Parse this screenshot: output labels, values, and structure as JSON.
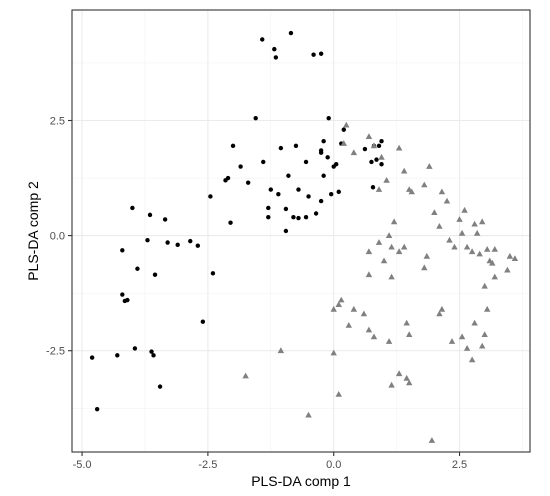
{
  "chart_data": {
    "type": "scatter",
    "title": "",
    "xlabel": "PLS-DA comp 1",
    "ylabel": "PLS-DA comp 2",
    "xlim": [
      -5.2,
      3.9
    ],
    "ylim": [
      -4.7,
      4.9
    ],
    "xticks": [
      -5.0,
      -2.5,
      0.0,
      2.5
    ],
    "xtick_labels": [
      "-5.0",
      "-2.5",
      "0.0",
      "2.5"
    ],
    "yticks": [
      -2.5,
      0.0,
      2.5
    ],
    "ytick_labels": [
      "-2.5",
      "0.0",
      "2.5"
    ],
    "grid": true,
    "legend": "none",
    "series": [
      {
        "marker": "circle",
        "color": "#000000",
        "points": [
          [
            -1.42,
            4.26
          ],
          [
            -1.18,
            4.05
          ],
          [
            -1.15,
            3.87
          ],
          [
            -0.85,
            4.4
          ],
          [
            -0.4,
            3.93
          ],
          [
            -0.25,
            3.95
          ],
          [
            -1.55,
            2.55
          ],
          [
            -2.0,
            1.95
          ],
          [
            -1.85,
            1.5
          ],
          [
            -1.4,
            1.6
          ],
          [
            -1.05,
            1.9
          ],
          [
            -0.9,
            1.3
          ],
          [
            -0.75,
            1.95
          ],
          [
            -0.55,
            1.6
          ],
          [
            -0.25,
            1.8
          ],
          [
            -0.1,
            2.55
          ],
          [
            -0.2,
            2.05
          ],
          [
            -0.12,
            1.7
          ],
          [
            0.2,
            2.3
          ],
          [
            0.15,
            2.0
          ],
          [
            -0.25,
            1.85
          ],
          [
            -0.2,
            1.3
          ],
          [
            0.0,
            1.5
          ],
          [
            -1.7,
            1.15
          ],
          [
            -1.25,
            1.0
          ],
          [
            -1.1,
            0.9
          ],
          [
            -0.7,
            1.0
          ],
          [
            -0.5,
            0.85
          ],
          [
            -0.25,
            0.75
          ],
          [
            0.1,
            0.95
          ],
          [
            -2.15,
            1.2
          ],
          [
            -2.1,
            1.25
          ],
          [
            -2.45,
            0.85
          ],
          [
            -2.05,
            0.28
          ],
          [
            -1.3,
            0.4
          ],
          [
            -1.3,
            0.6
          ],
          [
            -0.95,
            0.58
          ],
          [
            -0.8,
            0.4
          ],
          [
            -0.95,
            0.1
          ],
          [
            -0.55,
            0.4
          ],
          [
            -0.35,
            0.48
          ],
          [
            -0.7,
            0.38
          ],
          [
            -0.05,
            0.9
          ],
          [
            0.75,
            1.6
          ],
          [
            0.85,
            1.65
          ],
          [
            0.95,
            1.55
          ],
          [
            0.62,
            1.88
          ],
          [
            0.8,
            1.95
          ],
          [
            0.9,
            1.95
          ],
          [
            0.95,
            2.05
          ],
          [
            0.78,
            1.05
          ],
          [
            0.05,
            1.55
          ],
          [
            -4.0,
            0.6
          ],
          [
            -3.65,
            0.45
          ],
          [
            -3.35,
            0.35
          ],
          [
            -3.7,
            -0.1
          ],
          [
            -3.3,
            -0.15
          ],
          [
            -3.1,
            -0.2
          ],
          [
            -2.85,
            -0.12
          ],
          [
            -2.7,
            -0.22
          ],
          [
            -2.4,
            -0.82
          ],
          [
            -4.2,
            -0.32
          ],
          [
            -3.9,
            -0.72
          ],
          [
            -3.55,
            -0.85
          ],
          [
            -4.2,
            -1.28
          ],
          [
            -4.1,
            -1.4
          ],
          [
            -4.15,
            -1.42
          ],
          [
            -2.6,
            -1.87
          ],
          [
            -3.95,
            -2.45
          ],
          [
            -3.62,
            -2.52
          ],
          [
            -3.58,
            -2.6
          ],
          [
            -4.3,
            -2.6
          ],
          [
            -4.8,
            -2.65
          ],
          [
            -3.45,
            -3.28
          ],
          [
            -4.7,
            -3.77
          ]
        ]
      },
      {
        "marker": "triangle",
        "color": "#808080",
        "points": [
          [
            0.2,
            2.0
          ],
          [
            0.25,
            2.4
          ],
          [
            0.4,
            1.8
          ],
          [
            0.7,
            2.15
          ],
          [
            0.8,
            1.95
          ],
          [
            0.95,
            1.7
          ],
          [
            1.05,
            1.2
          ],
          [
            0.9,
            1.0
          ],
          [
            1.3,
            1.9
          ],
          [
            1.4,
            1.4
          ],
          [
            1.5,
            1.0
          ],
          [
            1.55,
            0.95
          ],
          [
            1.8,
            1.1
          ],
          [
            1.9,
            1.5
          ],
          [
            2.15,
            0.95
          ],
          [
            2.25,
            0.75
          ],
          [
            2.0,
            0.5
          ],
          [
            2.1,
            0.2
          ],
          [
            2.5,
            0.35
          ],
          [
            2.6,
            0.55
          ],
          [
            2.8,
            0.25
          ],
          [
            2.85,
            0.05
          ],
          [
            2.95,
            0.3
          ],
          [
            2.55,
            0.05
          ],
          [
            2.4,
            -0.25
          ],
          [
            2.3,
            -0.1
          ],
          [
            2.65,
            -0.25
          ],
          [
            2.75,
            -0.35
          ],
          [
            2.9,
            -0.4
          ],
          [
            3.05,
            -0.3
          ],
          [
            3.1,
            -0.55
          ],
          [
            3.15,
            -0.6
          ],
          [
            3.2,
            -0.9
          ],
          [
            3.0,
            -1.1
          ],
          [
            3.45,
            -0.75
          ],
          [
            3.5,
            -0.45
          ],
          [
            3.6,
            -0.5
          ],
          [
            3.2,
            -0.3
          ],
          [
            1.2,
            0.3
          ],
          [
            1.1,
            0.0
          ],
          [
            0.9,
            -0.15
          ],
          [
            1.15,
            -0.25
          ],
          [
            1.3,
            -0.35
          ],
          [
            0.7,
            -0.35
          ],
          [
            1.0,
            -0.55
          ],
          [
            1.4,
            -0.25
          ],
          [
            1.85,
            -0.45
          ],
          [
            1.8,
            -0.7
          ],
          [
            1.15,
            -0.9
          ],
          [
            0.7,
            -0.85
          ],
          [
            0.15,
            -1.4
          ],
          [
            0.1,
            -1.5
          ],
          [
            0.0,
            -1.6
          ],
          [
            0.4,
            -1.6
          ],
          [
            0.6,
            -1.7
          ],
          [
            0.3,
            -1.95
          ],
          [
            0.7,
            -2.05
          ],
          [
            0.8,
            -2.2
          ],
          [
            1.1,
            -2.3
          ],
          [
            1.5,
            -2.15
          ],
          [
            1.45,
            -1.9
          ],
          [
            2.1,
            -1.7
          ],
          [
            2.15,
            -1.6
          ],
          [
            2.35,
            -2.3
          ],
          [
            2.55,
            -2.2
          ],
          [
            2.65,
            -2.45
          ],
          [
            2.8,
            -1.9
          ],
          [
            3.05,
            -1.6
          ],
          [
            3.0,
            -2.15
          ],
          [
            2.95,
            -2.4
          ],
          [
            2.75,
            -2.7
          ],
          [
            1.3,
            -3.0
          ],
          [
            1.15,
            -3.25
          ],
          [
            1.45,
            -3.1
          ],
          [
            1.5,
            -3.2
          ],
          [
            0.0,
            -2.55
          ],
          [
            -1.05,
            -2.5
          ],
          [
            -1.75,
            -3.05
          ],
          [
            0.1,
            -3.45
          ],
          [
            -0.5,
            -3.9
          ],
          [
            1.95,
            -4.45
          ]
        ]
      }
    ]
  }
}
